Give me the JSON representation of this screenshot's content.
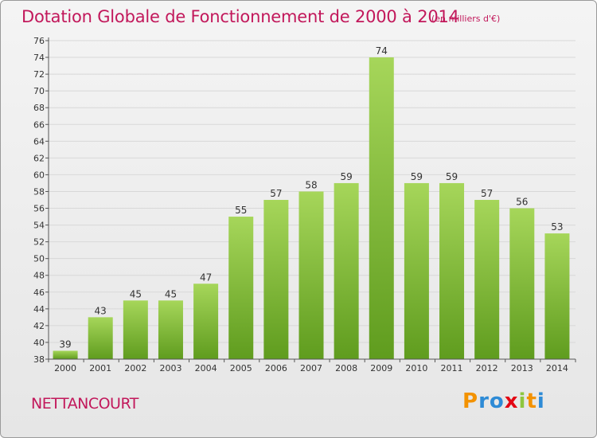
{
  "title": "Dotation Globale de Fonctionnement de 2000 à 2014",
  "subtitle": "(en milliers d'€)",
  "town": "NETTANCOURT",
  "logo": {
    "letters": [
      "P",
      "r",
      "o",
      "x",
      "i",
      "t",
      "i"
    ],
    "colors": [
      "#f39200",
      "#2e8bd6",
      "#2e8bd6",
      "#e30613",
      "#8ec63f",
      "#f39200",
      "#2e8bd6"
    ]
  },
  "colors": {
    "title": "#c2185b",
    "bar_light": "#a6d65a",
    "bar_dark": "#5f9c1e",
    "grid": "#d8d8d8",
    "axis": "#555555"
  },
  "chart_data": {
    "type": "bar",
    "categories": [
      "2000",
      "2001",
      "2002",
      "2003",
      "2004",
      "2005",
      "2006",
      "2007",
      "2008",
      "2009",
      "2010",
      "2011",
      "2012",
      "2013",
      "2014"
    ],
    "values": [
      39,
      43,
      45,
      45,
      47,
      55,
      57,
      58,
      59,
      74,
      59,
      59,
      57,
      56,
      53
    ],
    "title": "Dotation Globale de Fonctionnement de 2000 à 2014",
    "ylim": [
      38,
      76
    ],
    "yticks": [
      38,
      40,
      42,
      44,
      46,
      48,
      50,
      52,
      54,
      56,
      58,
      60,
      62,
      64,
      66,
      68,
      70,
      72,
      74,
      76
    ],
    "grid": true,
    "data_labels": true
  }
}
